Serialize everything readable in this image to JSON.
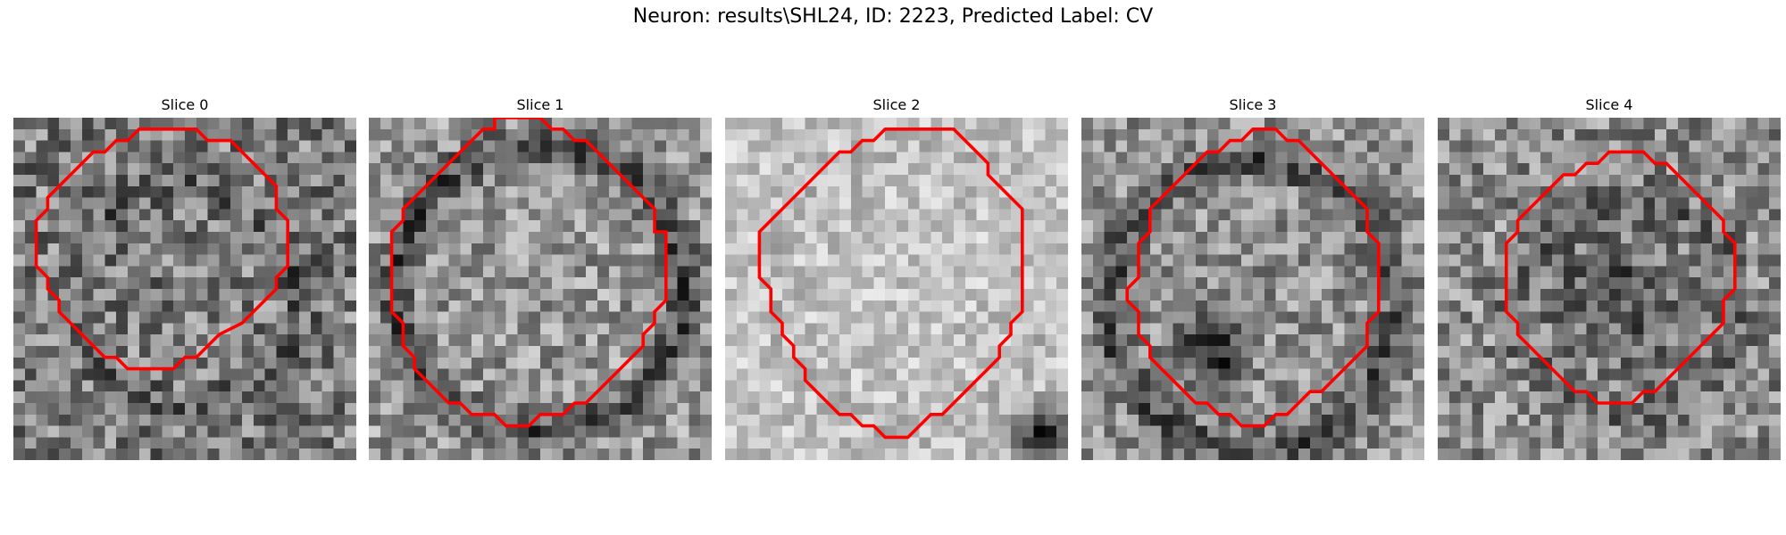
{
  "figure": {
    "title": "Neuron: results\\SHL24, ID: 2223, Predicted Label: CV"
  },
  "contour_color": "#ff0000",
  "panels": [
    {
      "title": "Slice 0",
      "base": 125,
      "contrast": 70,
      "ring": [
        0.5,
        0.52,
        0.33
      ],
      "ring_dark": 30,
      "seed": 11,
      "contour": [
        [
          12,
          1
        ],
        [
          16,
          1
        ],
        [
          17,
          2
        ],
        [
          19,
          2
        ],
        [
          20,
          3
        ],
        [
          21,
          4
        ],
        [
          22,
          5
        ],
        [
          23,
          6
        ],
        [
          23,
          8
        ],
        [
          24,
          9
        ],
        [
          24,
          13
        ],
        [
          23,
          14
        ],
        [
          23,
          15
        ],
        [
          22,
          16
        ],
        [
          21,
          17
        ],
        [
          20,
          18
        ],
        [
          18,
          19
        ],
        [
          17,
          20
        ],
        [
          16,
          21
        ],
        [
          15,
          21
        ],
        [
          14,
          22
        ],
        [
          10,
          22
        ],
        [
          9,
          21
        ],
        [
          8,
          21
        ],
        [
          7,
          20
        ],
        [
          6,
          19
        ],
        [
          5,
          18
        ],
        [
          4,
          17
        ],
        [
          4,
          16
        ],
        [
          3,
          15
        ],
        [
          3,
          14
        ],
        [
          2,
          13
        ],
        [
          2,
          9
        ],
        [
          3,
          8
        ],
        [
          3,
          7
        ],
        [
          4,
          6
        ],
        [
          5,
          5
        ],
        [
          6,
          4
        ],
        [
          7,
          3
        ],
        [
          8,
          3
        ],
        [
          9,
          2
        ],
        [
          10,
          2
        ],
        [
          11,
          1
        ]
      ]
    },
    {
      "title": "Slice 1",
      "base": 150,
      "contrast": 60,
      "ring": [
        0.5,
        0.5,
        0.42
      ],
      "ring_dark": 75,
      "seed": 27,
      "contour": [
        [
          11,
          0
        ],
        [
          15,
          0
        ],
        [
          16,
          1
        ],
        [
          17,
          1
        ],
        [
          18,
          2
        ],
        [
          19,
          2
        ],
        [
          20,
          3
        ],
        [
          21,
          4
        ],
        [
          22,
          5
        ],
        [
          23,
          6
        ],
        [
          24,
          7
        ],
        [
          25,
          8
        ],
        [
          25,
          10
        ],
        [
          26,
          10
        ],
        [
          26,
          16
        ],
        [
          25,
          17
        ],
        [
          25,
          18
        ],
        [
          24,
          19
        ],
        [
          24,
          20
        ],
        [
          23,
          21
        ],
        [
          22,
          22
        ],
        [
          21,
          23
        ],
        [
          20,
          24
        ],
        [
          19,
          25
        ],
        [
          18,
          25
        ],
        [
          17,
          26
        ],
        [
          15,
          26
        ],
        [
          14,
          27
        ],
        [
          12,
          27
        ],
        [
          11,
          26
        ],
        [
          9,
          26
        ],
        [
          8,
          25
        ],
        [
          7,
          25
        ],
        [
          6,
          24
        ],
        [
          5,
          23
        ],
        [
          4,
          22
        ],
        [
          4,
          21
        ],
        [
          3,
          20
        ],
        [
          3,
          18
        ],
        [
          2,
          17
        ],
        [
          2,
          10
        ],
        [
          3,
          9
        ],
        [
          3,
          8
        ],
        [
          4,
          7
        ],
        [
          5,
          6
        ],
        [
          6,
          5
        ],
        [
          7,
          4
        ],
        [
          8,
          3
        ],
        [
          9,
          2
        ],
        [
          10,
          1
        ],
        [
          11,
          1
        ]
      ]
    },
    {
      "title": "Slice 2",
      "base": 195,
      "contrast": 40,
      "ring": [
        0.55,
        0.5,
        0.4
      ],
      "ring_dark": 10,
      "seed": 43,
      "dark_corner": true,
      "contour": [
        [
          14,
          1
        ],
        [
          20,
          1
        ],
        [
          21,
          2
        ],
        [
          22,
          3
        ],
        [
          23,
          4
        ],
        [
          23,
          5
        ],
        [
          24,
          6
        ],
        [
          25,
          7
        ],
        [
          26,
          8
        ],
        [
          26,
          17
        ],
        [
          25,
          18
        ],
        [
          25,
          19
        ],
        [
          24,
          20
        ],
        [
          24,
          21
        ],
        [
          23,
          22
        ],
        [
          22,
          23
        ],
        [
          21,
          24
        ],
        [
          20,
          25
        ],
        [
          19,
          26
        ],
        [
          18,
          26
        ],
        [
          17,
          27
        ],
        [
          16,
          28
        ],
        [
          14,
          28
        ],
        [
          13,
          27
        ],
        [
          12,
          27
        ],
        [
          11,
          26
        ],
        [
          10,
          26
        ],
        [
          9,
          25
        ],
        [
          8,
          24
        ],
        [
          7,
          23
        ],
        [
          7,
          22
        ],
        [
          6,
          21
        ],
        [
          6,
          20
        ],
        [
          5,
          19
        ],
        [
          5,
          18
        ],
        [
          4,
          17
        ],
        [
          4,
          15
        ],
        [
          3,
          14
        ],
        [
          3,
          10
        ],
        [
          4,
          9
        ],
        [
          5,
          8
        ],
        [
          6,
          7
        ],
        [
          7,
          6
        ],
        [
          8,
          5
        ],
        [
          9,
          4
        ],
        [
          10,
          3
        ],
        [
          11,
          3
        ],
        [
          12,
          2
        ],
        [
          13,
          2
        ]
      ]
    },
    {
      "title": "Slice 3",
      "base": 145,
      "contrast": 60,
      "ring": [
        0.5,
        0.55,
        0.42
      ],
      "ring_dark": 70,
      "seed": 61,
      "dark_blob": true,
      "contour": [
        [
          15,
          1
        ],
        [
          17,
          1
        ],
        [
          18,
          2
        ],
        [
          19,
          2
        ],
        [
          20,
          3
        ],
        [
          21,
          4
        ],
        [
          22,
          5
        ],
        [
          23,
          6
        ],
        [
          24,
          7
        ],
        [
          25,
          8
        ],
        [
          25,
          10
        ],
        [
          26,
          11
        ],
        [
          26,
          17
        ],
        [
          25,
          18
        ],
        [
          25,
          20
        ],
        [
          24,
          21
        ],
        [
          23,
          22
        ],
        [
          22,
          23
        ],
        [
          21,
          24
        ],
        [
          20,
          24
        ],
        [
          19,
          25
        ],
        [
          18,
          26
        ],
        [
          17,
          26
        ],
        [
          16,
          27
        ],
        [
          14,
          27
        ],
        [
          13,
          26
        ],
        [
          12,
          26
        ],
        [
          11,
          25
        ],
        [
          10,
          25
        ],
        [
          9,
          24
        ],
        [
          8,
          23
        ],
        [
          7,
          22
        ],
        [
          6,
          21
        ],
        [
          6,
          20
        ],
        [
          5,
          19
        ],
        [
          5,
          17
        ],
        [
          4,
          16
        ],
        [
          4,
          15
        ],
        [
          5,
          14
        ],
        [
          5,
          11
        ],
        [
          6,
          10
        ],
        [
          6,
          8
        ],
        [
          7,
          7
        ],
        [
          8,
          6
        ],
        [
          9,
          5
        ],
        [
          10,
          4
        ],
        [
          11,
          3
        ],
        [
          12,
          3
        ],
        [
          13,
          2
        ],
        [
          14,
          2
        ]
      ]
    },
    {
      "title": "Slice 4",
      "base": 140,
      "contrast": 65,
      "ring": [
        0.55,
        0.55,
        0.32
      ],
      "ring_dark": 30,
      "seed": 83,
      "dark_center": true,
      "contour": [
        [
          16,
          3
        ],
        [
          18,
          3
        ],
        [
          19,
          4
        ],
        [
          20,
          4
        ],
        [
          21,
          5
        ],
        [
          22,
          6
        ],
        [
          23,
          7
        ],
        [
          24,
          8
        ],
        [
          25,
          9
        ],
        [
          25,
          10
        ],
        [
          26,
          11
        ],
        [
          26,
          15
        ],
        [
          25,
          16
        ],
        [
          25,
          18
        ],
        [
          24,
          19
        ],
        [
          23,
          20
        ],
        [
          22,
          21
        ],
        [
          21,
          22
        ],
        [
          20,
          23
        ],
        [
          19,
          24
        ],
        [
          18,
          24
        ],
        [
          17,
          25
        ],
        [
          14,
          25
        ],
        [
          13,
          24
        ],
        [
          12,
          24
        ],
        [
          11,
          23
        ],
        [
          10,
          22
        ],
        [
          9,
          21
        ],
        [
          8,
          20
        ],
        [
          7,
          19
        ],
        [
          7,
          18
        ],
        [
          6,
          17
        ],
        [
          6,
          11
        ],
        [
          7,
          10
        ],
        [
          7,
          9
        ],
        [
          8,
          8
        ],
        [
          9,
          7
        ],
        [
          10,
          6
        ],
        [
          11,
          5
        ],
        [
          12,
          5
        ],
        [
          13,
          4
        ],
        [
          14,
          4
        ],
        [
          15,
          3
        ]
      ]
    }
  ]
}
